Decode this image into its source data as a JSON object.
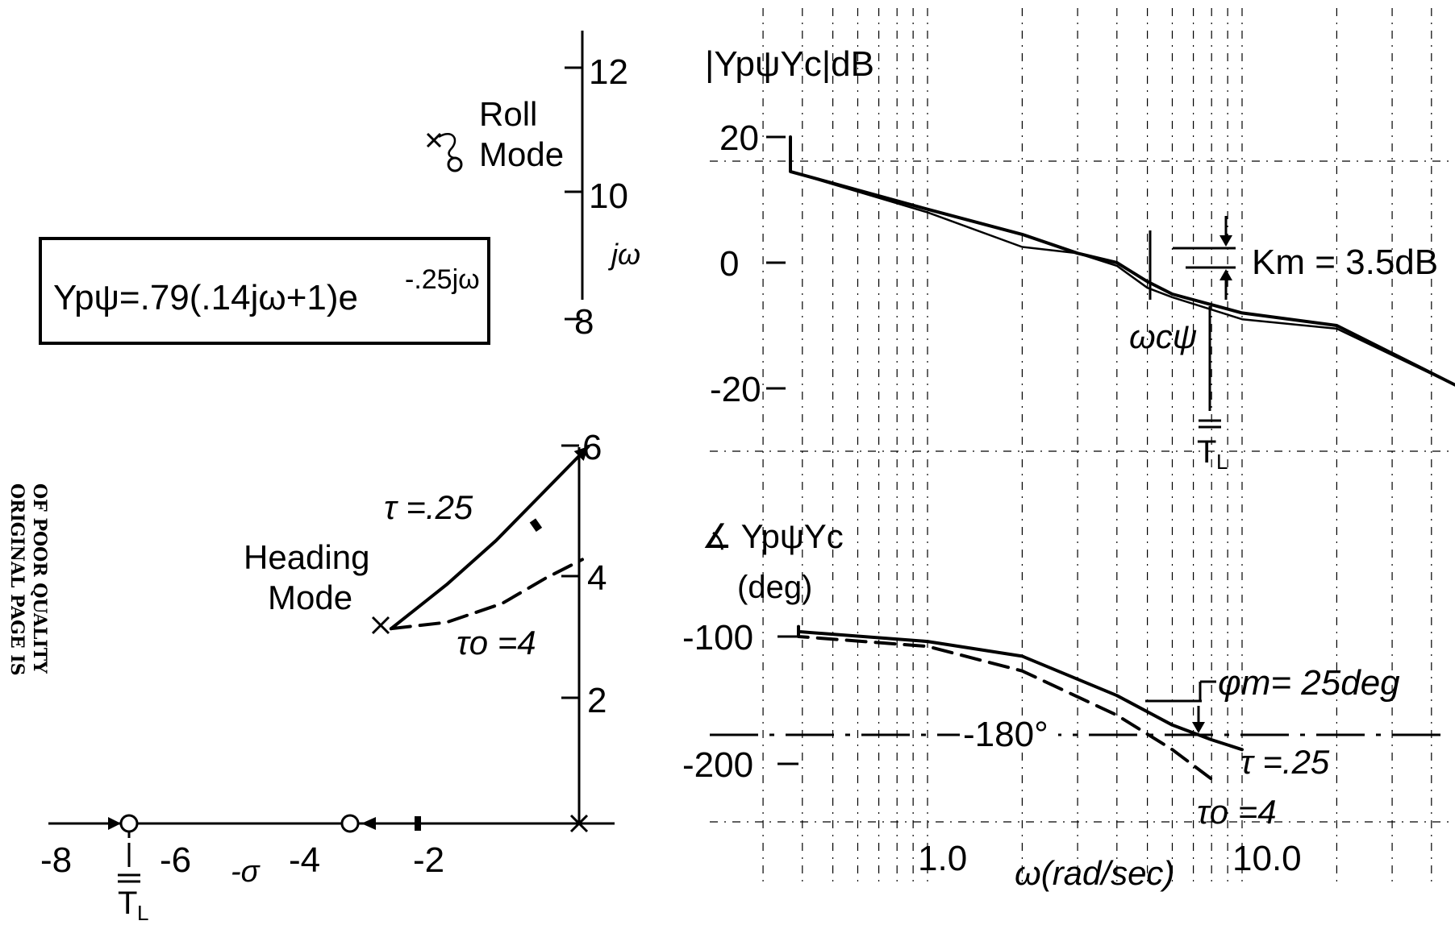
{
  "side_note": {
    "line1": "ORIGINAL PAGE IS",
    "line2": "OF POOR QUALITY"
  },
  "transfer_function": {
    "label": "Ypψ=.79(.14jω+1)e",
    "exponent": "-.25jω"
  },
  "root_locus": {
    "jw_label": "jω",
    "sigma_label": "-σ",
    "tl_label": "1/TL",
    "roll_mode": [
      "Roll",
      "Mode"
    ],
    "heading_mode": [
      "Heading",
      "Mode"
    ],
    "tau_label": "τ =.25",
    "tau0_label": "τo =4",
    "real_ticks": [
      -8,
      -6,
      -4,
      -2
    ],
    "imag_ticks_lower": [
      2,
      4,
      6
    ],
    "imag_ticks_upper": [
      8,
      10,
      12
    ]
  },
  "bode": {
    "mag_label": "|YpψYc|dB",
    "mag_ticks": [
      20,
      0,
      -20
    ],
    "km_label": "Km = 3.5dB",
    "wc_label": "ωcψ",
    "tl_label": "1/TL",
    "phase_label_line1": "∡ YpψYc",
    "phase_label_line2": "(deg)",
    "phase_ticks": [
      -100,
      -200
    ],
    "minus180_label": "-180°",
    "phim_label": "φm= 25deg",
    "tau_label": "τ =.25",
    "tau0_label": "τo =4",
    "x_ticks": [
      "1.0",
      "10.0"
    ],
    "x_label": "ω(rad/sec)"
  },
  "chart_data": [
    {
      "type": "scatter",
      "x_axis_ticks": [
        -8,
        -6,
        -4,
        -2
      ],
      "y_axis_ticks": [
        2,
        4,
        6,
        8,
        10,
        12
      ],
      "poles": [
        {
          "x": 0,
          "y": 0
        },
        {
          "x": -3.1,
          "y": 3.1
        },
        {
          "x": -2.3,
          "y": 11.4
        }
      ],
      "zeros": [
        {
          "x": -7.1,
          "y": 0
        },
        {
          "x": -3.6,
          "y": 0
        },
        {
          "x": -2.3,
          "y": 11.0
        }
      ],
      "series": [
        {
          "name": "τ =.25",
          "style": "solid",
          "x": [
            -3.1,
            -2.2,
            -1.4,
            -0.7,
            0.1
          ],
          "y": [
            3.1,
            3.8,
            4.5,
            5.2,
            6.0
          ]
        },
        {
          "name": "τo =4",
          "style": "dashed",
          "x": [
            -3.1,
            -2.2,
            -1.3,
            -0.6,
            0.0
          ],
          "y": [
            3.1,
            3.2,
            3.5,
            3.9,
            4.2
          ]
        }
      ]
    },
    {
      "type": "line",
      "x_scale": "log",
      "x_ticks": [
        1.0,
        10.0
      ],
      "magnitude_ticks": [
        20,
        0,
        -20
      ],
      "phase_ticks": [
        -100,
        -200
      ],
      "magnitude_series": [
        {
          "name": "τ =.25",
          "x": [
            0.1,
            0.3,
            1.0,
            2.0,
            3.0,
            4.0,
            5.0,
            6.0,
            10.0,
            20.0,
            50.0
          ],
          "y": [
            20,
            14.5,
            8.5,
            4.5,
            1.5,
            0,
            -3,
            -5,
            -8,
            -10,
            -20
          ]
        },
        {
          "name": "τo =4",
          "x": [
            0.1,
            0.3,
            1.0,
            2.0,
            3.0,
            4.0,
            5.0,
            6.0,
            10.0,
            20.0,
            50.0
          ],
          "y": [
            20,
            14.5,
            8,
            2.5,
            1.5,
            -0.5,
            -4,
            -5.5,
            -9,
            -10.5,
            -20
          ]
        }
      ],
      "phase_series": [
        {
          "name": "τ =.25",
          "x": [
            0.1,
            0.3,
            1.0,
            2.0,
            4.0,
            6.0,
            8.0,
            10.0
          ],
          "y": [
            -90,
            -95,
            -105,
            -120,
            -160,
            -190,
            -205,
            -215
          ]
        },
        {
          "name": "τo =4",
          "x": [
            0.1,
            0.3,
            1.0,
            2.0,
            4.0,
            6.0,
            8.0
          ],
          "y": [
            -90,
            -100,
            -110,
            -135,
            -180,
            -215,
            -245
          ]
        }
      ],
      "reference_phase": -180,
      "phase_margin_deg": 25,
      "gain_margin_db": 3.5
    }
  ]
}
